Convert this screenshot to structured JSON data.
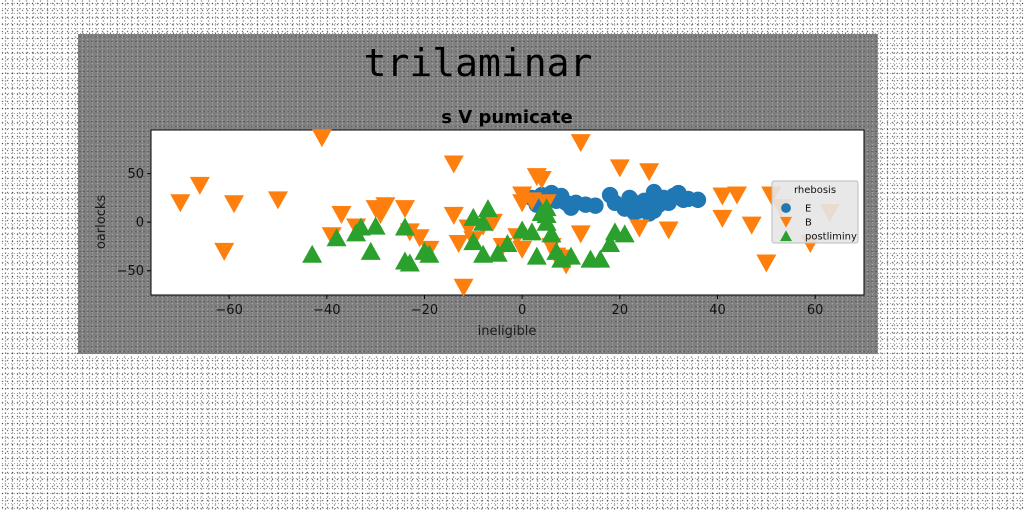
{
  "chart_data": {
    "type": "scatter",
    "title": "trilaminar",
    "subtitle": "s V pumicate",
    "xlabel": "ineligible",
    "ylabel": "oarlocks",
    "xlim": [
      -76,
      70
    ],
    "ylim": [
      -75,
      95
    ],
    "xticks": [
      -60,
      -40,
      -20,
      0,
      20,
      40,
      60
    ],
    "yticks": [
      -50,
      0,
      50
    ],
    "grid": false,
    "legend": {
      "title": "rhebosis",
      "position": "right"
    },
    "series": [
      {
        "name": "E",
        "marker": "circle",
        "color": "#1f77b4",
        "points": [
          [
            2,
            25
          ],
          [
            4,
            28
          ],
          [
            6,
            30
          ],
          [
            7,
            22
          ],
          [
            8,
            27
          ],
          [
            9,
            20
          ],
          [
            10,
            15
          ],
          [
            11,
            20
          ],
          [
            13,
            18
          ],
          [
            15,
            17
          ],
          [
            18,
            28
          ],
          [
            19,
            20
          ],
          [
            21,
            14
          ],
          [
            22,
            25
          ],
          [
            23,
            20
          ],
          [
            24,
            12
          ],
          [
            25,
            22
          ],
          [
            26,
            9
          ],
          [
            27,
            31
          ],
          [
            28,
            18
          ],
          [
            29,
            25
          ],
          [
            30,
            20
          ],
          [
            31,
            27
          ],
          [
            32,
            30
          ],
          [
            33,
            23
          ],
          [
            34,
            24
          ],
          [
            36,
            23
          ],
          [
            27,
            12
          ],
          [
            25,
            14
          ],
          [
            23,
            10
          ],
          [
            3,
            18
          ],
          [
            5,
            22
          ]
        ]
      },
      {
        "name": "B",
        "marker": "triangle-down",
        "color": "#ff7f0e",
        "points": [
          [
            -70,
            20
          ],
          [
            -66,
            38
          ],
          [
            -61,
            -30
          ],
          [
            -59,
            19
          ],
          [
            -50,
            23
          ],
          [
            -41,
            87
          ],
          [
            -39,
            -14
          ],
          [
            -37,
            8
          ],
          [
            -34,
            -5
          ],
          [
            -30,
            14
          ],
          [
            -29,
            8
          ],
          [
            -28,
            17
          ],
          [
            -24,
            14
          ],
          [
            -23,
            -10
          ],
          [
            -21,
            -16
          ],
          [
            -19,
            -28
          ],
          [
            -14,
            60
          ],
          [
            -14,
            7
          ],
          [
            -13,
            -22
          ],
          [
            -12,
            -67
          ],
          [
            -11,
            -6
          ],
          [
            -10,
            -18
          ],
          [
            -8,
            -4
          ],
          [
            -6,
            0
          ],
          [
            -4,
            -25
          ],
          [
            -1,
            -15
          ],
          [
            0,
            28
          ],
          [
            0,
            -28
          ],
          [
            2,
            22
          ],
          [
            3,
            47
          ],
          [
            4,
            44
          ],
          [
            5,
            20
          ],
          [
            6,
            -25
          ],
          [
            7,
            -35
          ],
          [
            8,
            -37
          ],
          [
            9,
            -44
          ],
          [
            12,
            82
          ],
          [
            20,
            56
          ],
          [
            24,
            -6
          ],
          [
            26,
            52
          ],
          [
            47,
            -3
          ],
          [
            44,
            28
          ],
          [
            50,
            -42
          ],
          [
            51,
            28
          ],
          [
            53,
            15
          ],
          [
            59,
            -22
          ],
          [
            63,
            10
          ],
          [
            41,
            27
          ],
          [
            41,
            4
          ],
          [
            0,
            20
          ],
          [
            12,
            -12
          ],
          [
            30,
            -8
          ]
        ]
      },
      {
        "name": "postliminy",
        "marker": "triangle-up",
        "color": "#2ca02c",
        "points": [
          [
            -43,
            -33
          ],
          [
            -38,
            -16
          ],
          [
            -34,
            -11
          ],
          [
            -33,
            -5
          ],
          [
            -31,
            -30
          ],
          [
            -30,
            -4
          ],
          [
            -24,
            -5
          ],
          [
            -24,
            -40
          ],
          [
            -23,
            -42
          ],
          [
            -20,
            -30
          ],
          [
            -19,
            -33
          ],
          [
            -10,
            5
          ],
          [
            -10,
            -20
          ],
          [
            -8,
            -33
          ],
          [
            -7,
            14
          ],
          [
            -5,
            -32
          ],
          [
            -3,
            -22
          ],
          [
            0,
            -8
          ],
          [
            2,
            -10
          ],
          [
            3,
            -35
          ],
          [
            4,
            10
          ],
          [
            5,
            15
          ],
          [
            5,
            0
          ],
          [
            6,
            -12
          ],
          [
            7,
            -30
          ],
          [
            8,
            -38
          ],
          [
            10,
            -35
          ],
          [
            14,
            -38
          ],
          [
            16,
            -38
          ],
          [
            18,
            -22
          ],
          [
            19,
            -10
          ],
          [
            21,
            -12
          ],
          [
            5,
            8
          ],
          [
            -8,
            0
          ]
        ]
      }
    ]
  }
}
